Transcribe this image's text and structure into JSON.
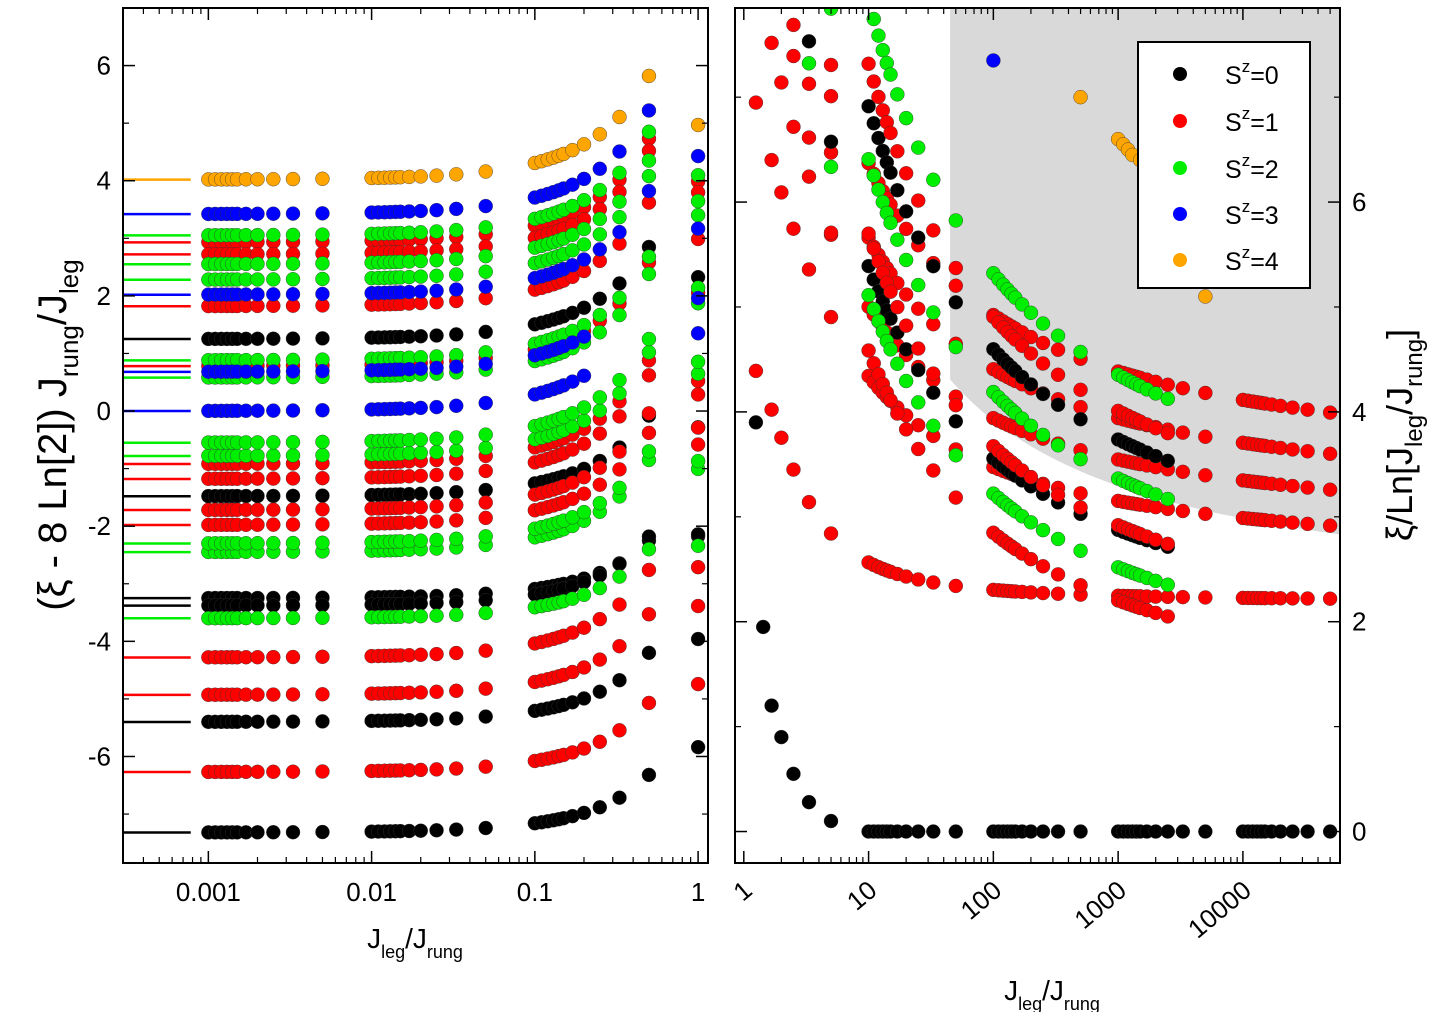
{
  "chart_data": [
    {
      "panel": "left",
      "type": "scatter",
      "xscale": "log",
      "xlabel": {
        "base": "J",
        "sub1": "leg",
        "mid": "/J",
        "sub2": "rung"
      },
      "ylabel": {
        "pre": "(ξ - 8 Ln[2]) J",
        "sub1": "rung",
        "mid": "/J",
        "sub2": "leg"
      },
      "xlim": [
        0.0003,
        1.15
      ],
      "ylim": [
        -7.85,
        7.0
      ],
      "xticks": [
        {
          "v": 0.001,
          "label": "0.001"
        },
        {
          "v": 0.01,
          "label": "0.01"
        },
        {
          "v": 0.1,
          "label": "0.1"
        },
        {
          "v": 1,
          "label": "1"
        }
      ],
      "yticks": [
        {
          "v": -6,
          "label": "-6"
        },
        {
          "v": -4,
          "label": "-4"
        },
        {
          "v": -2,
          "label": "-2"
        },
        {
          "v": 0,
          "label": "0"
        },
        {
          "v": 2,
          "label": "2"
        },
        {
          "v": 4,
          "label": "4"
        },
        {
          "v": 6,
          "label": "6"
        }
      ],
      "x_groups": [
        [
          0.001,
          0.0011,
          0.0012,
          0.0013,
          0.0014,
          0.0015,
          0.0017,
          0.002,
          0.0025,
          0.0033,
          0.005
        ],
        [
          0.01,
          0.011,
          0.012,
          0.013,
          0.014,
          0.015,
          0.017,
          0.02,
          0.025,
          0.033,
          0.05
        ],
        [
          0.1,
          0.11,
          0.12,
          0.13,
          0.14,
          0.15,
          0.17,
          0.2,
          0.25,
          0.33,
          0.5
        ],
        [
          1.0
        ]
      ],
      "x_cut": 0.22,
      "reference_segment_x": [
        0.0003,
        0.00078
      ],
      "levels": [
        {
          "s": 0,
          "y0": -7.32,
          "slope": 0.25
        },
        {
          "s": 0,
          "y0": -5.4,
          "slope": 0.3
        },
        {
          "s": 0,
          "y0": -3.25,
          "slope": 0.25
        },
        {
          "s": 0,
          "y0": -3.38,
          "slope": 0.3
        },
        {
          "s": 0,
          "y0": -1.48,
          "slope": 0.35
        },
        {
          "s": 0,
          "y0": 1.25,
          "slope": 0.4
        },
        {
          "s": 1,
          "y0": -6.27,
          "slope": 0.3
        },
        {
          "s": 1,
          "y0": -4.93,
          "slope": 0.35
        },
        {
          "s": 1,
          "y0": -4.28,
          "slope": 0.38
        },
        {
          "s": 1,
          "y0": -1.98,
          "slope": 0.4
        },
        {
          "s": 1,
          "y0": -1.72,
          "slope": 0.42
        },
        {
          "s": 1,
          "y0": -1.18,
          "slope": 0.45
        },
        {
          "s": 1,
          "y0": -0.92,
          "slope": 0.45
        },
        {
          "s": 1,
          "y0": 1.82,
          "slope": 0.45
        },
        {
          "s": 1,
          "y0": 2.93,
          "slope": 0.45
        },
        {
          "s": 1,
          "y0": 2.72,
          "slope": 0.45
        },
        {
          "s": 1,
          "y0": 0.78,
          "slope": 0.45
        },
        {
          "s": 2,
          "y0": -3.6,
          "slope": 0.3
        },
        {
          "s": 2,
          "y0": -2.45,
          "slope": 0.4
        },
        {
          "s": 2,
          "y0": -2.3,
          "slope": 0.4
        },
        {
          "s": 2,
          "y0": -0.78,
          "slope": 0.45
        },
        {
          "s": 2,
          "y0": -0.55,
          "slope": 0.45
        },
        {
          "s": 2,
          "y0": 0.58,
          "slope": 0.45
        },
        {
          "s": 2,
          "y0": 0.88,
          "slope": 0.45
        },
        {
          "s": 2,
          "y0": 2.28,
          "slope": 0.45
        },
        {
          "s": 2,
          "y0": 2.55,
          "slope": 0.45
        },
        {
          "s": 2,
          "y0": 3.05,
          "slope": 0.45
        },
        {
          "s": 3,
          "y0": 0.0,
          "slope": 0.45
        },
        {
          "s": 3,
          "y0": 0.68,
          "slope": 0.45
        },
        {
          "s": 3,
          "y0": 2.02,
          "slope": 0.45
        },
        {
          "s": 3,
          "y0": 3.42,
          "slope": 0.45
        },
        {
          "s": 4,
          "y0": 4.02,
          "slope": 0.45
        }
      ]
    },
    {
      "panel": "right",
      "type": "scatter",
      "xscale": "log",
      "xlabel": {
        "base": "J",
        "sub1": "leg",
        "mid": "/J",
        "sub2": "rung"
      },
      "ylabel": {
        "pre": "ξ/Ln[J",
        "sub1": "leg",
        "mid": "/J",
        "sub2": "rung",
        "post": "]"
      },
      "xlim": [
        0.85,
        60000
      ],
      "ylim": [
        -0.3,
        7.85
      ],
      "xticks": [
        {
          "v": 1,
          "label": "1"
        },
        {
          "v": 10,
          "label": "10"
        },
        {
          "v": 100,
          "label": "100"
        },
        {
          "v": 1000,
          "label": "1000"
        },
        {
          "v": 10000,
          "label": "10000"
        }
      ],
      "yticks": [
        {
          "v": 0,
          "label": "0"
        },
        {
          "v": 2,
          "label": "2"
        },
        {
          "v": 4,
          "label": "4"
        },
        {
          "v": 6,
          "label": "6"
        }
      ],
      "shaded_region": "grey area above a decreasing boundary curve (upper right)",
      "x_dense_groups": [
        [
          10,
          11,
          12,
          13,
          14,
          15,
          17,
          20,
          25,
          33,
          50
        ],
        [
          100,
          110,
          120,
          130,
          140,
          150,
          170,
          200,
          250,
          330,
          500
        ],
        [
          1000,
          1100,
          1200,
          1300,
          1400,
          1500,
          1700,
          2000,
          2500,
          3300,
          5000
        ],
        [
          10000,
          11000,
          12000,
          13000,
          14000,
          15000,
          17000,
          20000,
          25000,
          33000,
          50000
        ]
      ],
      "x_sparse": [
        1.25,
        1.67,
        2.0,
        2.5,
        3.33,
        5.0
      ],
      "ground_state_points": [
        [
          1.25,
          3.9
        ],
        [
          1.43,
          1.95
        ],
        [
          1.67,
          1.2
        ],
        [
          2.0,
          0.9
        ],
        [
          2.5,
          0.55
        ],
        [
          3.33,
          0.28
        ],
        [
          5.0,
          0.1
        ]
      ],
      "ground_state_plateau": 0.0,
      "s1_plateau": {
        "y0": 2.2,
        "coef": 2.3
      },
      "s1_bands": [
        {
          "y0": 2.5,
          "coef": 4.5
        },
        {
          "y0": 2.75,
          "coef": 5.5
        },
        {
          "y0": 3.0,
          "coef": 6.5
        },
        {
          "y0": 3.3,
          "coef": 7.5
        }
      ],
      "upper_families": [
        {
          "s": 1,
          "y0": 0.9,
          "coef": 9.0
        },
        {
          "s": 0,
          "y0": 1.5,
          "coef": 9.5
        },
        {
          "s": 2,
          "y0": 1.1,
          "coef": 9.8
        },
        {
          "s": 1,
          "y0": 1.4,
          "coef": 10.5
        },
        {
          "s": 2,
          "y0": 1.7,
          "coef": 11.5
        },
        {
          "s": 0,
          "y0": 2.0,
          "coef": 12.0
        },
        {
          "s": 1,
          "y0": 2.2,
          "coef": 12.5
        },
        {
          "s": 2,
          "y0": 2.4,
          "coef": 13.5
        }
      ],
      "sz4_points": [
        [
          500,
          7.0
        ],
        [
          1000,
          6.6
        ],
        [
          1100,
          6.55
        ],
        [
          1200,
          6.5
        ],
        [
          1300,
          6.45
        ],
        [
          1500,
          6.4
        ],
        [
          3300,
          5.25
        ],
        [
          5000,
          5.1
        ]
      ],
      "sz3_points": [
        [
          100,
          7.35
        ]
      ],
      "legend": [
        {
          "label": "S",
          "sup": "z",
          "value": "=0",
          "color": "#000000"
        },
        {
          "label": "S",
          "sup": "z",
          "value": "=1",
          "color": "#ff0000"
        },
        {
          "label": "S",
          "sup": "z",
          "value": "=2",
          "color": "#00ee00"
        },
        {
          "label": "S",
          "sup": "z",
          "value": "=3",
          "color": "#0000ff"
        },
        {
          "label": "S",
          "sup": "z",
          "value": "=4",
          "color": "#ffa500"
        }
      ]
    }
  ],
  "colors": {
    "s0": "#000000",
    "s1": "#ff0000",
    "s2": "#00ee00",
    "s3": "#0000ff",
    "s4": "#ffa500",
    "shade": "#d9d9d9",
    "edge": "#333333"
  }
}
